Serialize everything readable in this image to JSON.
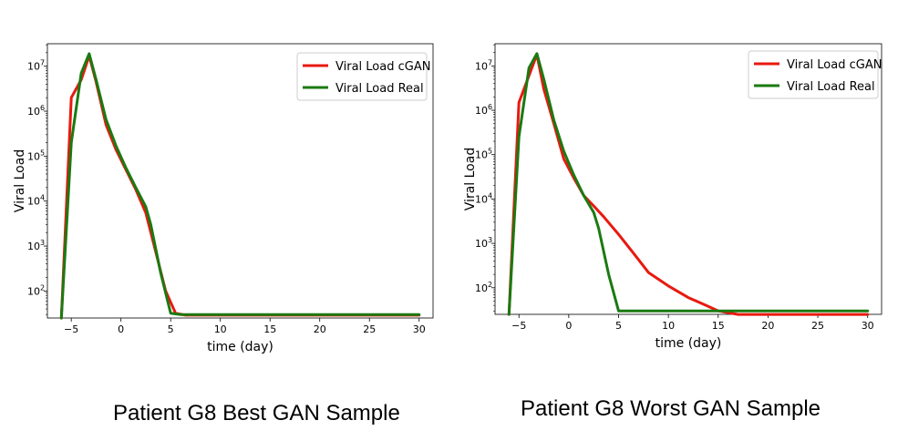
{
  "chart_data": [
    {
      "type": "line",
      "caption": "Patient G8 Best GAN Sample",
      "xlabel": "time (day)",
      "ylabel": "Viral Load",
      "yscale": "log",
      "xlim": [
        -7.4,
        31.4
      ],
      "ylim_log10": [
        1.4,
        7.5
      ],
      "grid": false,
      "legend_position": "top-right",
      "x_ticks": [
        -5,
        0,
        5,
        10,
        15,
        20,
        25,
        30
      ],
      "x_tick_labels": [
        "−5",
        "0",
        "5",
        "10",
        "15",
        "20",
        "25",
        "30"
      ],
      "y_tick_exponents": [
        2,
        3,
        4,
        5,
        6,
        7
      ],
      "y_tick_base": "10",
      "series": [
        {
          "name": "Viral Load cGAN",
          "color": "#e8190f",
          "x": [
            -6,
            -5,
            -4,
            -3.2,
            -2.5,
            -1.5,
            -0.5,
            0.5,
            1.5,
            2.5,
            3.3,
            4.5,
            5.5,
            6.5,
            10,
            15,
            20,
            25,
            30
          ],
          "y": [
            25,
            2000000,
            5000000,
            17000000,
            4500000,
            500000,
            140000,
            50000,
            18000,
            5500,
            1100,
            100,
            32,
            29,
            29,
            29,
            29,
            29,
            29
          ]
        },
        {
          "name": "Viral Load Real",
          "color": "#1a7a11",
          "x": [
            -6,
            -5,
            -4,
            -3.2,
            -2.5,
            -1.5,
            -0.5,
            0.5,
            1.5,
            2.5,
            3,
            4,
            5,
            6,
            10,
            15,
            20,
            25,
            30
          ],
          "y": [
            25,
            200000,
            7000000,
            19000000,
            5000000,
            650000,
            170000,
            55000,
            20000,
            7500,
            3000,
            250,
            32,
            30,
            30,
            30,
            30,
            30,
            30
          ]
        }
      ]
    },
    {
      "type": "line",
      "caption": "Patient G8 Worst GAN Sample",
      "xlabel": "time (day)",
      "ylabel": "Viral Load",
      "yscale": "log",
      "xlim": [
        -7.4,
        31.4
      ],
      "ylim_log10": [
        1.4,
        7.5
      ],
      "grid": false,
      "legend_position": "top-right",
      "x_ticks": [
        -5,
        0,
        5,
        10,
        15,
        20,
        25,
        30
      ],
      "x_tick_labels": [
        "−5",
        "0",
        "5",
        "10",
        "15",
        "20",
        "25",
        "30"
      ],
      "y_tick_exponents": [
        2,
        3,
        4,
        5,
        6,
        7
      ],
      "y_tick_base": "10",
      "series": [
        {
          "name": "Viral Load cGAN",
          "color": "#e8190f",
          "x": [
            -6,
            -5,
            -4,
            -3.2,
            -2.5,
            -1.5,
            -0.5,
            0.5,
            1.5,
            2.5,
            3.5,
            5,
            6.5,
            8,
            10,
            12,
            14,
            15,
            17,
            20,
            25,
            30
          ],
          "y": [
            25,
            1500000,
            6000000,
            18000000,
            3000000,
            500000,
            80000,
            30000,
            12000,
            7000,
            4000,
            1600,
            600,
            220,
            110,
            60,
            38,
            30,
            25,
            25,
            25,
            25
          ]
        },
        {
          "name": "Viral Load Real",
          "color": "#1a7a11",
          "x": [
            -6,
            -5,
            -4,
            -3.2,
            -2.5,
            -1.5,
            -0.5,
            0.5,
            1.5,
            2.5,
            3,
            4,
            5,
            6,
            10,
            15,
            20,
            25,
            30
          ],
          "y": [
            25,
            250000,
            9000000,
            19000000,
            5000000,
            600000,
            120000,
            35000,
            12000,
            5000,
            2200,
            200,
            30,
            30,
            30,
            30,
            30,
            30,
            30
          ]
        }
      ]
    }
  ]
}
